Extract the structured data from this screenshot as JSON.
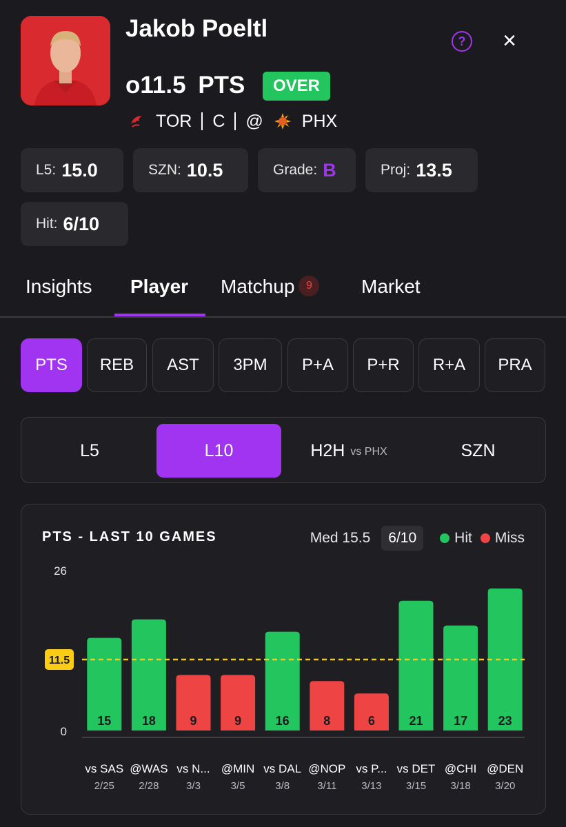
{
  "player": {
    "name": "Jakob Poeltl",
    "line": "o11.5",
    "stat_label": "PTS",
    "pick": "OVER",
    "team": "TOR",
    "position": "C",
    "at": "@",
    "opponent": "PHX",
    "team_icon": "raptors-logo-icon",
    "opponent_icon": "suns-logo-icon"
  },
  "header": {
    "help_icon": "?",
    "close_icon": "×"
  },
  "summary": [
    {
      "label": "L5:",
      "value": "15.0"
    },
    {
      "label": "SZN:",
      "value": "10.5"
    },
    {
      "label": "Grade:",
      "value": "B"
    },
    {
      "label": "Proj:",
      "value": "13.5"
    },
    {
      "label": "Hit:",
      "value": "6/10"
    }
  ],
  "tabs": [
    {
      "label": "Insights"
    },
    {
      "label": "Player"
    },
    {
      "label": "Matchup",
      "badge": "9"
    },
    {
      "label": "Market"
    }
  ],
  "active_tab": "Player",
  "stat_types": [
    "PTS",
    "REB",
    "AST",
    "3PM",
    "P+A",
    "P+R",
    "R+A",
    "PRA"
  ],
  "active_stat": "PTS",
  "ranges": [
    {
      "label": "L5"
    },
    {
      "label": "L10"
    },
    {
      "label": "H2H",
      "sub": "vs PHX"
    },
    {
      "label": "SZN"
    }
  ],
  "active_range": "L10",
  "chart": {
    "title": "PTS - LAST 10 GAMES",
    "median": "Med 15.5",
    "hit_count": "6/10",
    "legend_hit": "Hit",
    "legend_miss": "Miss"
  },
  "colors": {
    "accent": "#a134f0",
    "hit": "#22c55e",
    "miss": "#ef4444",
    "line": "#facc15"
  },
  "chart_data": {
    "type": "bar",
    "title": "PTS - LAST 10 GAMES",
    "categories": [
      "vs SAS",
      "@WAS",
      "vs N...",
      "@MIN",
      "vs DAL",
      "@NOP",
      "vs P...",
      "vs DET",
      "@CHI",
      "@DEN"
    ],
    "dates": [
      "2/25",
      "2/28",
      "3/3",
      "3/5",
      "3/8",
      "3/11",
      "3/13",
      "3/15",
      "3/18",
      "3/20"
    ],
    "values": [
      15,
      18,
      9,
      9,
      16,
      8,
      6,
      21,
      17,
      23
    ],
    "outcome": [
      "hit",
      "hit",
      "miss",
      "miss",
      "hit",
      "miss",
      "miss",
      "hit",
      "hit",
      "hit"
    ],
    "line_value": 11.5,
    "line_label": "11.5",
    "ylim": [
      0,
      26
    ],
    "yticks": [
      "26",
      "0"
    ],
    "legend": [
      "Hit",
      "Miss"
    ]
  }
}
